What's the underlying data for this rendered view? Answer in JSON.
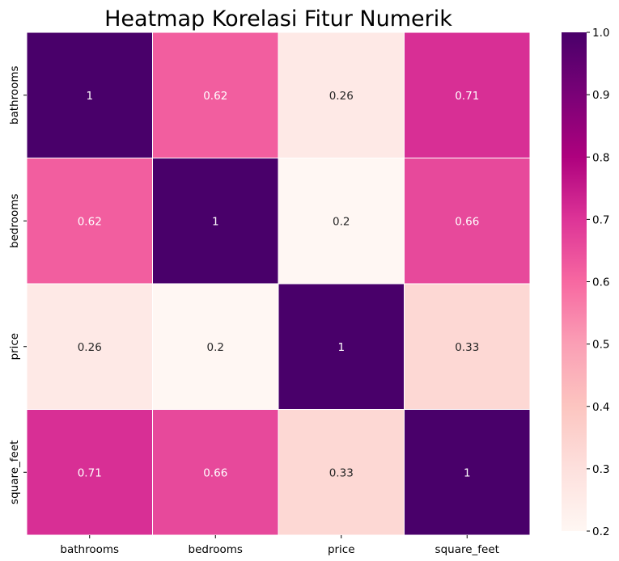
{
  "chart_data": {
    "type": "heatmap",
    "title": "Heatmap Korelasi Fitur Numerik",
    "xlabel": "",
    "ylabel": "",
    "x_categories": [
      "bathrooms",
      "bedrooms",
      "price",
      "square_feet"
    ],
    "y_categories": [
      "bathrooms",
      "bedrooms",
      "price",
      "square_feet"
    ],
    "values": [
      [
        1,
        0.62,
        0.26,
        0.71
      ],
      [
        0.62,
        1,
        0.2,
        0.66
      ],
      [
        0.26,
        0.2,
        1,
        0.33
      ],
      [
        0.71,
        0.66,
        0.33,
        1
      ]
    ],
    "annotations": [
      [
        "1",
        "0.62",
        "0.26",
        "0.71"
      ],
      [
        "0.62",
        "1",
        "0.2",
        "0.66"
      ],
      [
        "0.26",
        "0.2",
        "1",
        "0.33"
      ],
      [
        "0.71",
        "0.66",
        "0.33",
        "1"
      ]
    ],
    "colorbar": {
      "range": [
        0.2,
        1.0
      ],
      "ticks": [
        "0.2",
        "0.3",
        "0.4",
        "0.5",
        "0.6",
        "0.7",
        "0.8",
        "0.9",
        "1.0"
      ],
      "colormap": "RdPu"
    },
    "colors": {
      "stops": [
        "#fff7f3",
        "#fde0dd",
        "#fcc5c0",
        "#fa9fb5",
        "#f768a1",
        "#dd3497",
        "#ae017e",
        "#7a0177",
        "#49006a"
      ],
      "cell_border": "#ffffff",
      "light_text": "#ffffff",
      "dark_text": "#262626"
    }
  }
}
